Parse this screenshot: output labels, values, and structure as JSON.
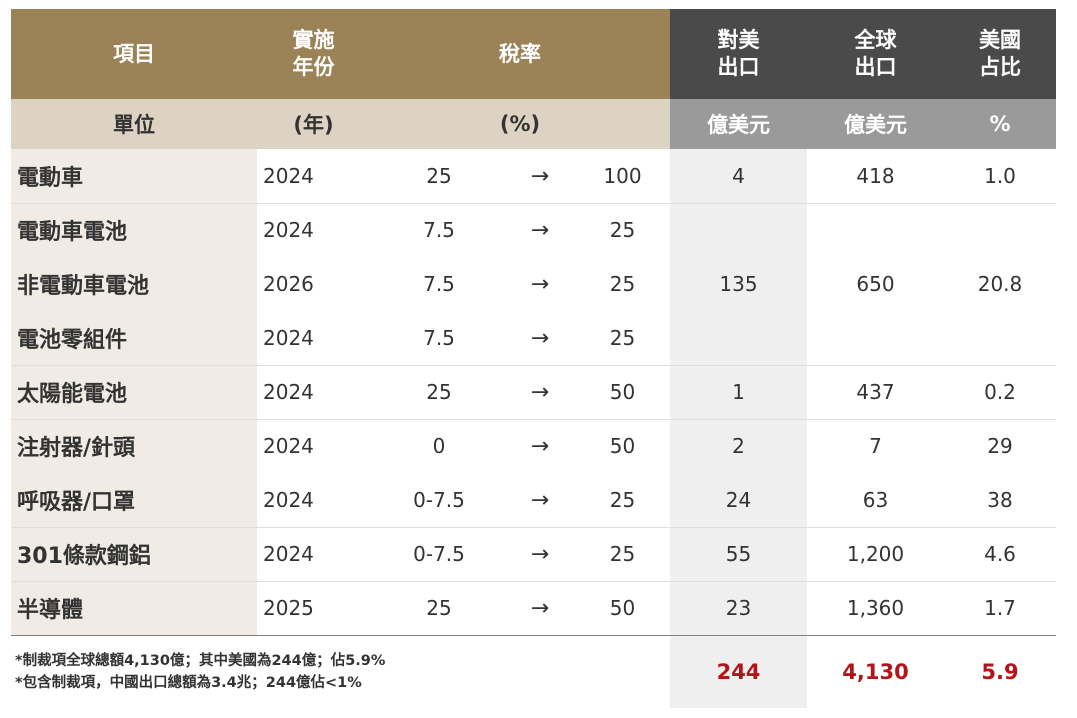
{
  "header": {
    "item": "項目",
    "year": [
      "實施",
      "年份"
    ],
    "rate": "稅率",
    "us_export": [
      "對美",
      "出口"
    ],
    "global_export": [
      "全球",
      "出口"
    ],
    "us_share": [
      "美國",
      "占比"
    ]
  },
  "units": {
    "item": "單位",
    "year": "(年)",
    "rate": "(%)",
    "us_export": "億美元",
    "global_export": "億美元",
    "us_share": "%"
  },
  "arrow_glyph": "→",
  "rows": [
    {
      "name": "電動車",
      "year": "2024",
      "from": "25",
      "to": "100"
    },
    {
      "name": "電動車電池",
      "year": "2024",
      "from": "7.5",
      "to": "25"
    },
    {
      "name": "非電動車電池",
      "year": "2026",
      "from": "7.5",
      "to": "25"
    },
    {
      "name": "電池零組件",
      "year": "2024",
      "from": "7.5",
      "to": "25"
    },
    {
      "name": "太陽能電池",
      "year": "2024",
      "from": "25",
      "to": "50"
    },
    {
      "name": "注射器/針頭",
      "year": "2024",
      "from": "0",
      "to": "50"
    },
    {
      "name": "呼吸器/口罩",
      "year": "2024",
      "from": "0-7.5",
      "to": "25"
    },
    {
      "name": "301條款鋼鋁",
      "year": "2024",
      "from": "0-7.5",
      "to": "25"
    },
    {
      "name": "半導體",
      "year": "2025",
      "from": "25",
      "to": "50"
    }
  ],
  "groups": [
    {
      "us": "4",
      "global": "418",
      "share": "1.0"
    },
    {
      "us": "135",
      "global": "650",
      "share": "20.8"
    },
    {
      "us": "1",
      "global": "437",
      "share": "0.2"
    },
    {
      "us": "2",
      "global": "7",
      "share": "29"
    },
    {
      "us": "24",
      "global": "63",
      "share": "38"
    },
    {
      "us": "55",
      "global": "1,200",
      "share": "4.6"
    },
    {
      "us": "23",
      "global": "1,360",
      "share": "1.7"
    }
  ],
  "footer": {
    "notes": [
      "*制裁項全球總額4,130億；其中美國為244億；佔5.9%",
      "*包含制裁項，中國出口總額為3.4兆；244億佔<1%"
    ],
    "us_total": "244",
    "global_total": "4,130",
    "share_total": "5.9"
  },
  "colors": {
    "header_gold": "#9c8257",
    "header_dark": "#4a4a4a",
    "unit_beige": "#ddd3c3",
    "unit_gray": "#9a9a9a",
    "total_red": "#b3141a"
  }
}
